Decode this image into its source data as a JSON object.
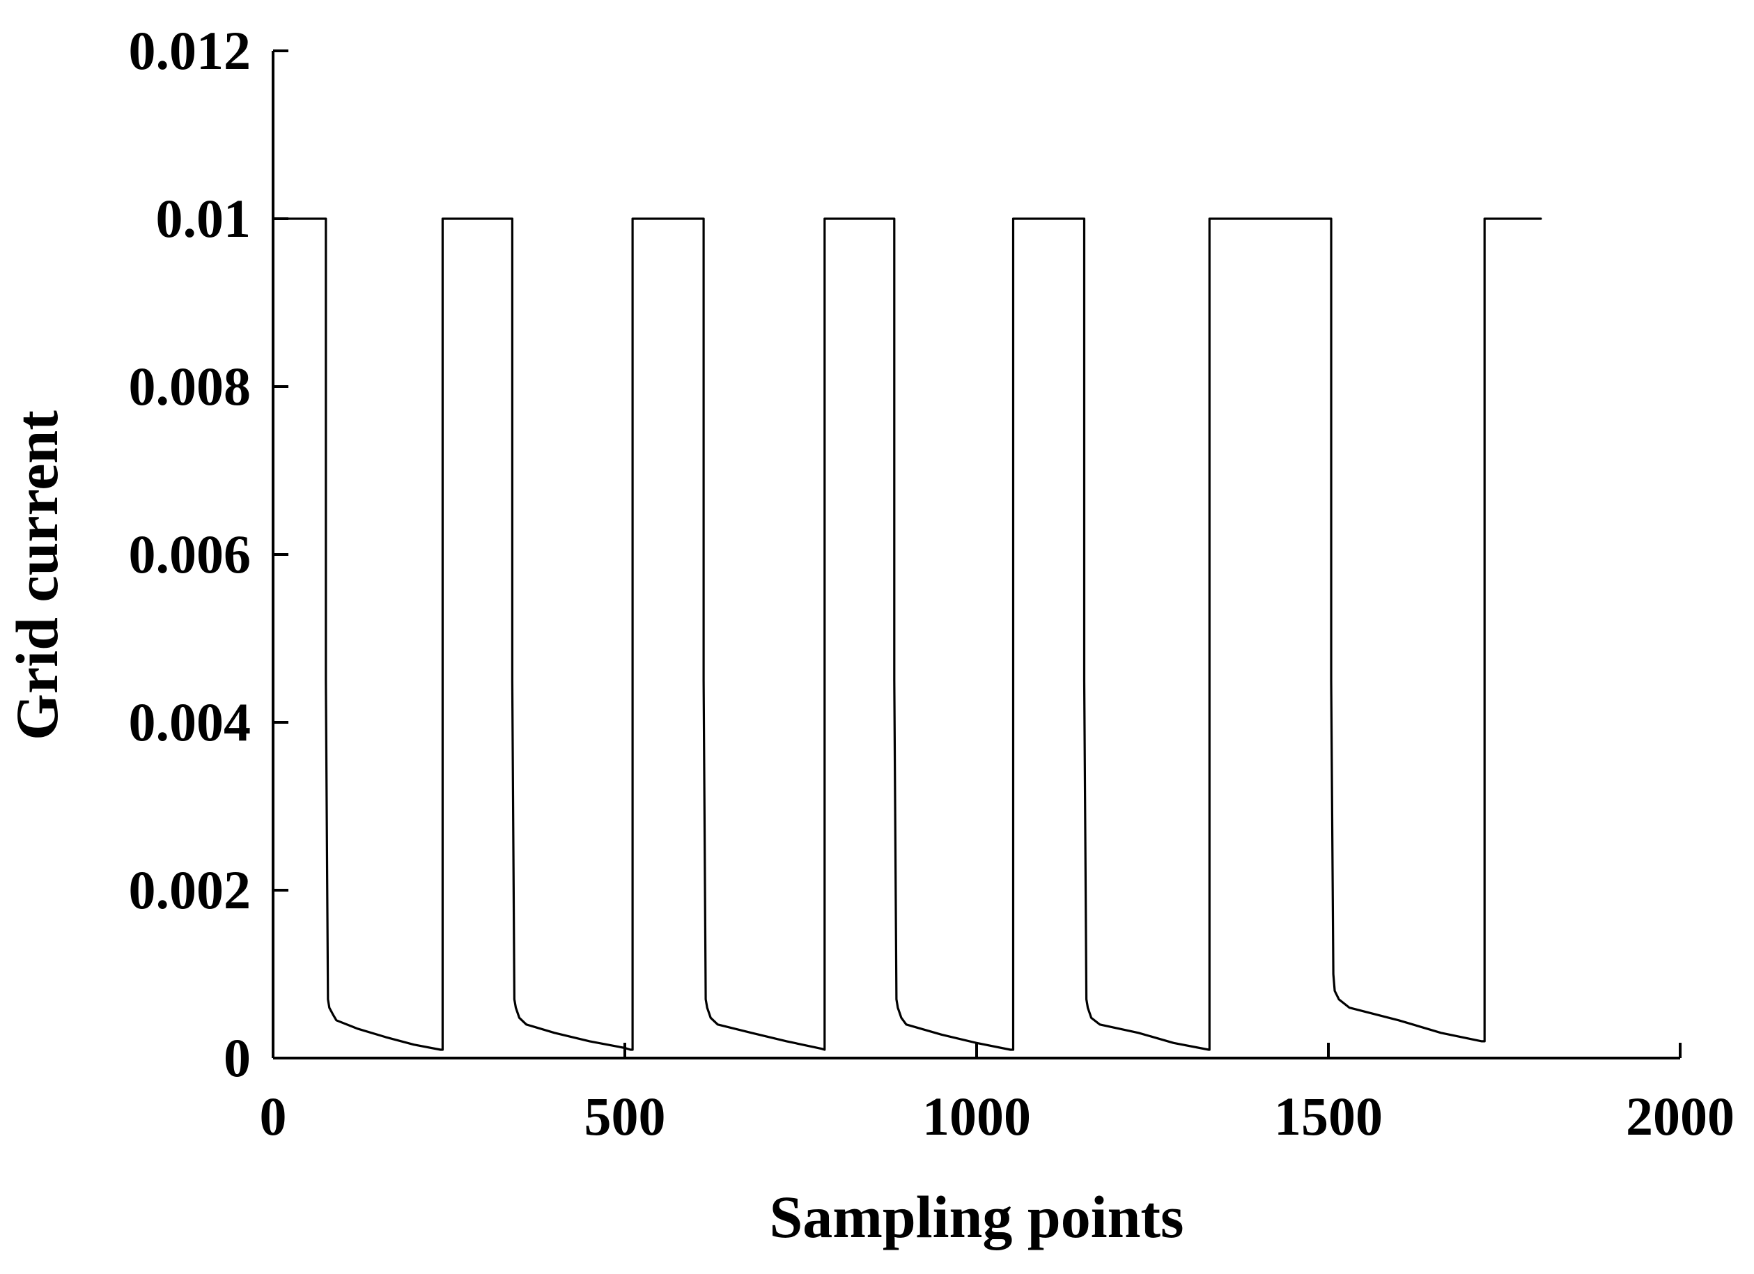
{
  "chart_data": {
    "type": "line",
    "title": "",
    "xlabel": "Sampling points",
    "ylabel": "Grid current",
    "xlim": [
      0,
      2000
    ],
    "ylim": [
      0,
      0.012
    ],
    "grid": false,
    "legend": "none",
    "x_ticks": [
      0,
      500,
      1000,
      1500,
      2000
    ],
    "x_tick_labels": [
      "0",
      "500",
      "1000",
      "1500",
      "2000"
    ],
    "y_ticks": [
      0,
      0.002,
      0.004,
      0.006,
      0.008,
      0.01,
      0.012
    ],
    "y_tick_labels": [
      "0",
      "0.002",
      "0.004",
      "0.006",
      "0.008",
      "0.01",
      "0.012"
    ],
    "series": [
      {
        "color": "#000000",
        "x": [
          0,
          75,
          75,
          78,
          80,
          85,
          90,
          120,
          160,
          200,
          238,
          241,
          241,
          340,
          340,
          343,
          345,
          350,
          360,
          400,
          450,
          500,
          508,
          511,
          511,
          612,
          612,
          615,
          617,
          622,
          632,
          680,
          730,
          780,
          784,
          784,
          883,
          883,
          886,
          888,
          893,
          900,
          950,
          1000,
          1048,
          1052,
          1052,
          1153,
          1153,
          1156,
          1158,
          1163,
          1175,
          1230,
          1280,
          1330,
          1331,
          1331,
          1504,
          1504,
          1507,
          1509,
          1515,
          1530,
          1600,
          1660,
          1718,
          1722,
          1722,
          1802
        ],
        "y": [
          0.01,
          0.01,
          0.0045,
          0.0007,
          0.0006,
          0.00052,
          0.00045,
          0.00035,
          0.00025,
          0.00016,
          0.0001,
          0.0001,
          0.01,
          0.01,
          0.0045,
          0.0007,
          0.0006,
          0.00048,
          0.0004,
          0.0003,
          0.0002,
          0.00012,
          0.0001,
          0.0001,
          0.01,
          0.01,
          0.0045,
          0.0007,
          0.0006,
          0.00048,
          0.0004,
          0.0003,
          0.0002,
          0.00011,
          0.0001,
          0.01,
          0.01,
          0.0045,
          0.0007,
          0.0006,
          0.00048,
          0.0004,
          0.00028,
          0.00018,
          0.0001,
          0.0001,
          0.01,
          0.01,
          0.0045,
          0.0007,
          0.0006,
          0.00048,
          0.0004,
          0.0003,
          0.00018,
          0.0001,
          0.0001,
          0.01,
          0.01,
          0.0045,
          0.001,
          0.0008,
          0.0007,
          0.0006,
          0.00045,
          0.0003,
          0.0002,
          0.0002,
          0.01,
          0.01
        ]
      }
    ]
  }
}
